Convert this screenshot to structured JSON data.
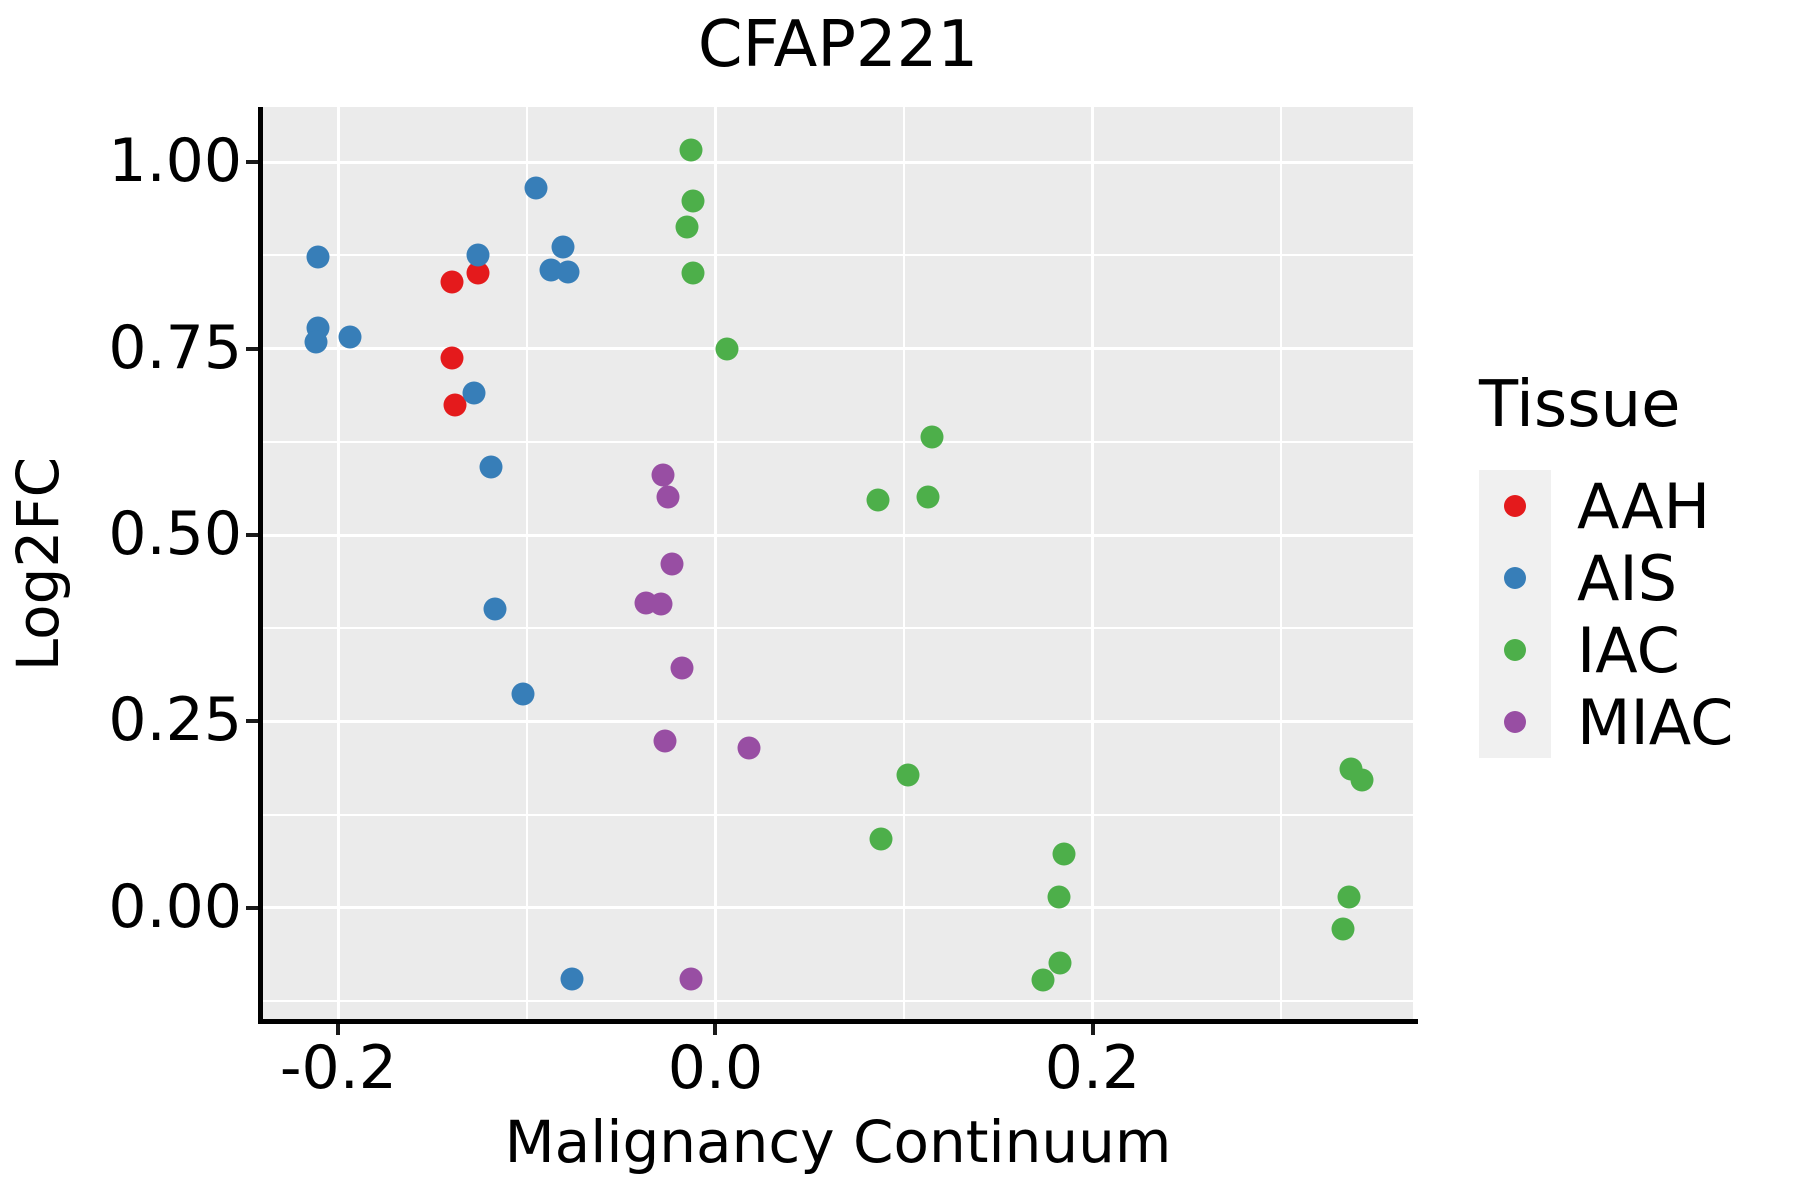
{
  "title": "CFAP221",
  "colors": {
    "panel_background": "#EBEBEB",
    "gridline": "#FFFFFF",
    "spine": "#000000",
    "tick": "#1A1A1A",
    "legend_key_background": "#F0F0F0",
    "text": "#000000",
    "aah": "#E41A1C",
    "ais": "#377EB8",
    "iac": "#4DAF4A",
    "miac": "#984EA3"
  },
  "legend": {
    "title": "Tissue"
  },
  "chart_data": {
    "type": "scatter",
    "title": "CFAP221",
    "xlabel": "Malignancy Continuum",
    "ylabel": "Log2FC",
    "xlim": [
      -0.24,
      0.37
    ],
    "ylim": [
      -0.149,
      1.074
    ],
    "grid": "major+minor",
    "legend_position": "right",
    "legend_title": "Tissue",
    "x_ticks": [
      {
        "value": -0.2,
        "label": "-0.2"
      },
      {
        "value": 0.0,
        "label": "0.0"
      },
      {
        "value": 0.2,
        "label": "0.2"
      }
    ],
    "y_ticks": [
      {
        "value": 0.0,
        "label": "0.00"
      },
      {
        "value": 0.25,
        "label": "0.25"
      },
      {
        "value": 0.5,
        "label": "0.50"
      },
      {
        "value": 0.75,
        "label": "0.75"
      },
      {
        "value": 1.0,
        "label": "1.00"
      }
    ],
    "x_minor": [
      -0.1,
      0.1,
      0.3
    ],
    "y_minor": [
      -0.125,
      0.125,
      0.375,
      0.625,
      0.875
    ],
    "series": [
      {
        "name": "AAH",
        "color": "#E41A1C",
        "points": [
          [
            -0.14,
            0.839
          ],
          [
            -0.126,
            0.851
          ],
          [
            -0.14,
            0.737
          ],
          [
            -0.138,
            0.674
          ]
        ]
      },
      {
        "name": "AIS",
        "color": "#377EB8",
        "points": [
          [
            -0.095,
            0.966
          ],
          [
            -0.211,
            0.873
          ],
          [
            -0.126,
            0.875
          ],
          [
            -0.081,
            0.886
          ],
          [
            -0.087,
            0.855
          ],
          [
            -0.078,
            0.853
          ],
          [
            -0.211,
            0.777
          ],
          [
            -0.212,
            0.759
          ],
          [
            -0.194,
            0.765
          ],
          [
            -0.128,
            0.69
          ],
          [
            -0.119,
            0.591
          ],
          [
            -0.117,
            0.401
          ],
          [
            -0.102,
            0.287
          ],
          [
            -0.076,
            -0.095
          ]
        ]
      },
      {
        "name": "IAC",
        "color": "#4DAF4A",
        "points": [
          [
            -0.013,
            1.017
          ],
          [
            -0.012,
            0.948
          ],
          [
            -0.015,
            0.913
          ],
          [
            -0.012,
            0.852
          ],
          [
            0.006,
            0.749
          ],
          [
            0.115,
            0.631
          ],
          [
            0.113,
            0.551
          ],
          [
            0.086,
            0.547
          ],
          [
            0.102,
            0.178
          ],
          [
            0.088,
            0.093
          ],
          [
            0.185,
            0.072
          ],
          [
            0.182,
            0.015
          ],
          [
            0.183,
            -0.074
          ],
          [
            0.174,
            -0.097
          ],
          [
            0.337,
            0.186
          ],
          [
            0.343,
            0.172
          ],
          [
            0.336,
            0.015
          ],
          [
            0.333,
            -0.028
          ]
        ]
      },
      {
        "name": "MIAC",
        "color": "#984EA3",
        "points": [
          [
            -0.028,
            0.58
          ],
          [
            -0.025,
            0.551
          ],
          [
            -0.023,
            0.461
          ],
          [
            -0.037,
            0.409
          ],
          [
            -0.029,
            0.407
          ],
          [
            -0.018,
            0.322
          ],
          [
            -0.027,
            0.224
          ],
          [
            0.018,
            0.215
          ],
          [
            -0.013,
            -0.095
          ]
        ]
      }
    ]
  }
}
